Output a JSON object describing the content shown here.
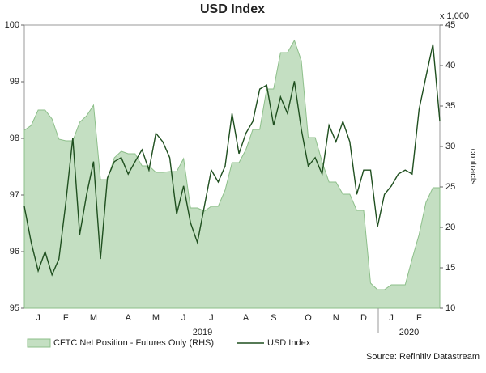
{
  "chart_data": {
    "type": "line",
    "title": "USD Index",
    "y2_unit_label": "x 1,000",
    "y2_label": "contracts",
    "source": "Source: Refinitiv Datastream",
    "x_group_labels": [
      "2019",
      "2020"
    ],
    "categories": [
      null,
      null,
      "J",
      null,
      null,
      null,
      "F",
      null,
      null,
      null,
      "M",
      null,
      null,
      null,
      null,
      "A",
      null,
      null,
      null,
      "M",
      null,
      null,
      null,
      "J",
      null,
      null,
      null,
      "J",
      null,
      null,
      null,
      null,
      "A",
      null,
      null,
      null,
      "S",
      null,
      null,
      null,
      null,
      "O",
      null,
      null,
      null,
      "N",
      null,
      null,
      null,
      "D",
      null,
      null,
      null,
      "J",
      null,
      null,
      null,
      "F",
      null,
      null,
      null
    ],
    "ylim": [
      95,
      100
    ],
    "yticks": [
      95,
      96,
      97,
      98,
      99,
      100
    ],
    "y2lim": [
      10,
      45
    ],
    "y2ticks": [
      10,
      15,
      20,
      25,
      30,
      35,
      40,
      45
    ],
    "series": [
      {
        "name": "CFTC Net Position - Futures Only (RHS)",
        "type": "area",
        "axis": "y2",
        "color": "#c4dfc2",
        "values": [
          32.0,
          32.6,
          34.5,
          34.5,
          33.4,
          30.9,
          30.7,
          30.7,
          33.0,
          33.8,
          35.1,
          25.9,
          25.9,
          28.6,
          29.4,
          29.1,
          29.1,
          27.6,
          27.6,
          26.8,
          26.8,
          26.9,
          26.9,
          28.5,
          22.4,
          22.4,
          22.0,
          22.6,
          22.6,
          24.6,
          28.0,
          28.0,
          29.6,
          32.1,
          32.1,
          37.1,
          37.1,
          41.6,
          41.6,
          43.1,
          40.6,
          31.1,
          31.1,
          28.1,
          25.6,
          25.6,
          24.1,
          24.1,
          22.1,
          22.1,
          13.1,
          12.3,
          12.3,
          12.9,
          12.9,
          12.9,
          16.1,
          19.1,
          23.1,
          24.9,
          24.9
        ]
      },
      {
        "name": "USD Index",
        "type": "line",
        "axis": "y",
        "color": "#1f4f1f",
        "values": [
          96.8,
          96.16,
          95.66,
          96.0,
          95.59,
          95.87,
          96.87,
          98.01,
          96.3,
          97.01,
          97.59,
          95.87,
          97.3,
          97.59,
          97.66,
          97.37,
          97.59,
          97.8,
          97.44,
          98.09,
          97.94,
          97.66,
          96.66,
          97.16,
          96.51,
          96.16,
          96.8,
          97.44,
          97.23,
          97.51,
          98.44,
          97.73,
          98.09,
          98.3,
          98.87,
          98.94,
          98.23,
          98.73,
          98.44,
          99.01,
          98.16,
          97.51,
          97.66,
          97.37,
          98.23,
          97.94,
          98.3,
          97.94,
          97.01,
          97.44,
          97.44,
          96.44,
          97.01,
          97.16,
          97.37,
          97.44,
          97.37,
          98.51,
          99.09,
          99.66,
          98.3
        ]
      }
    ]
  }
}
